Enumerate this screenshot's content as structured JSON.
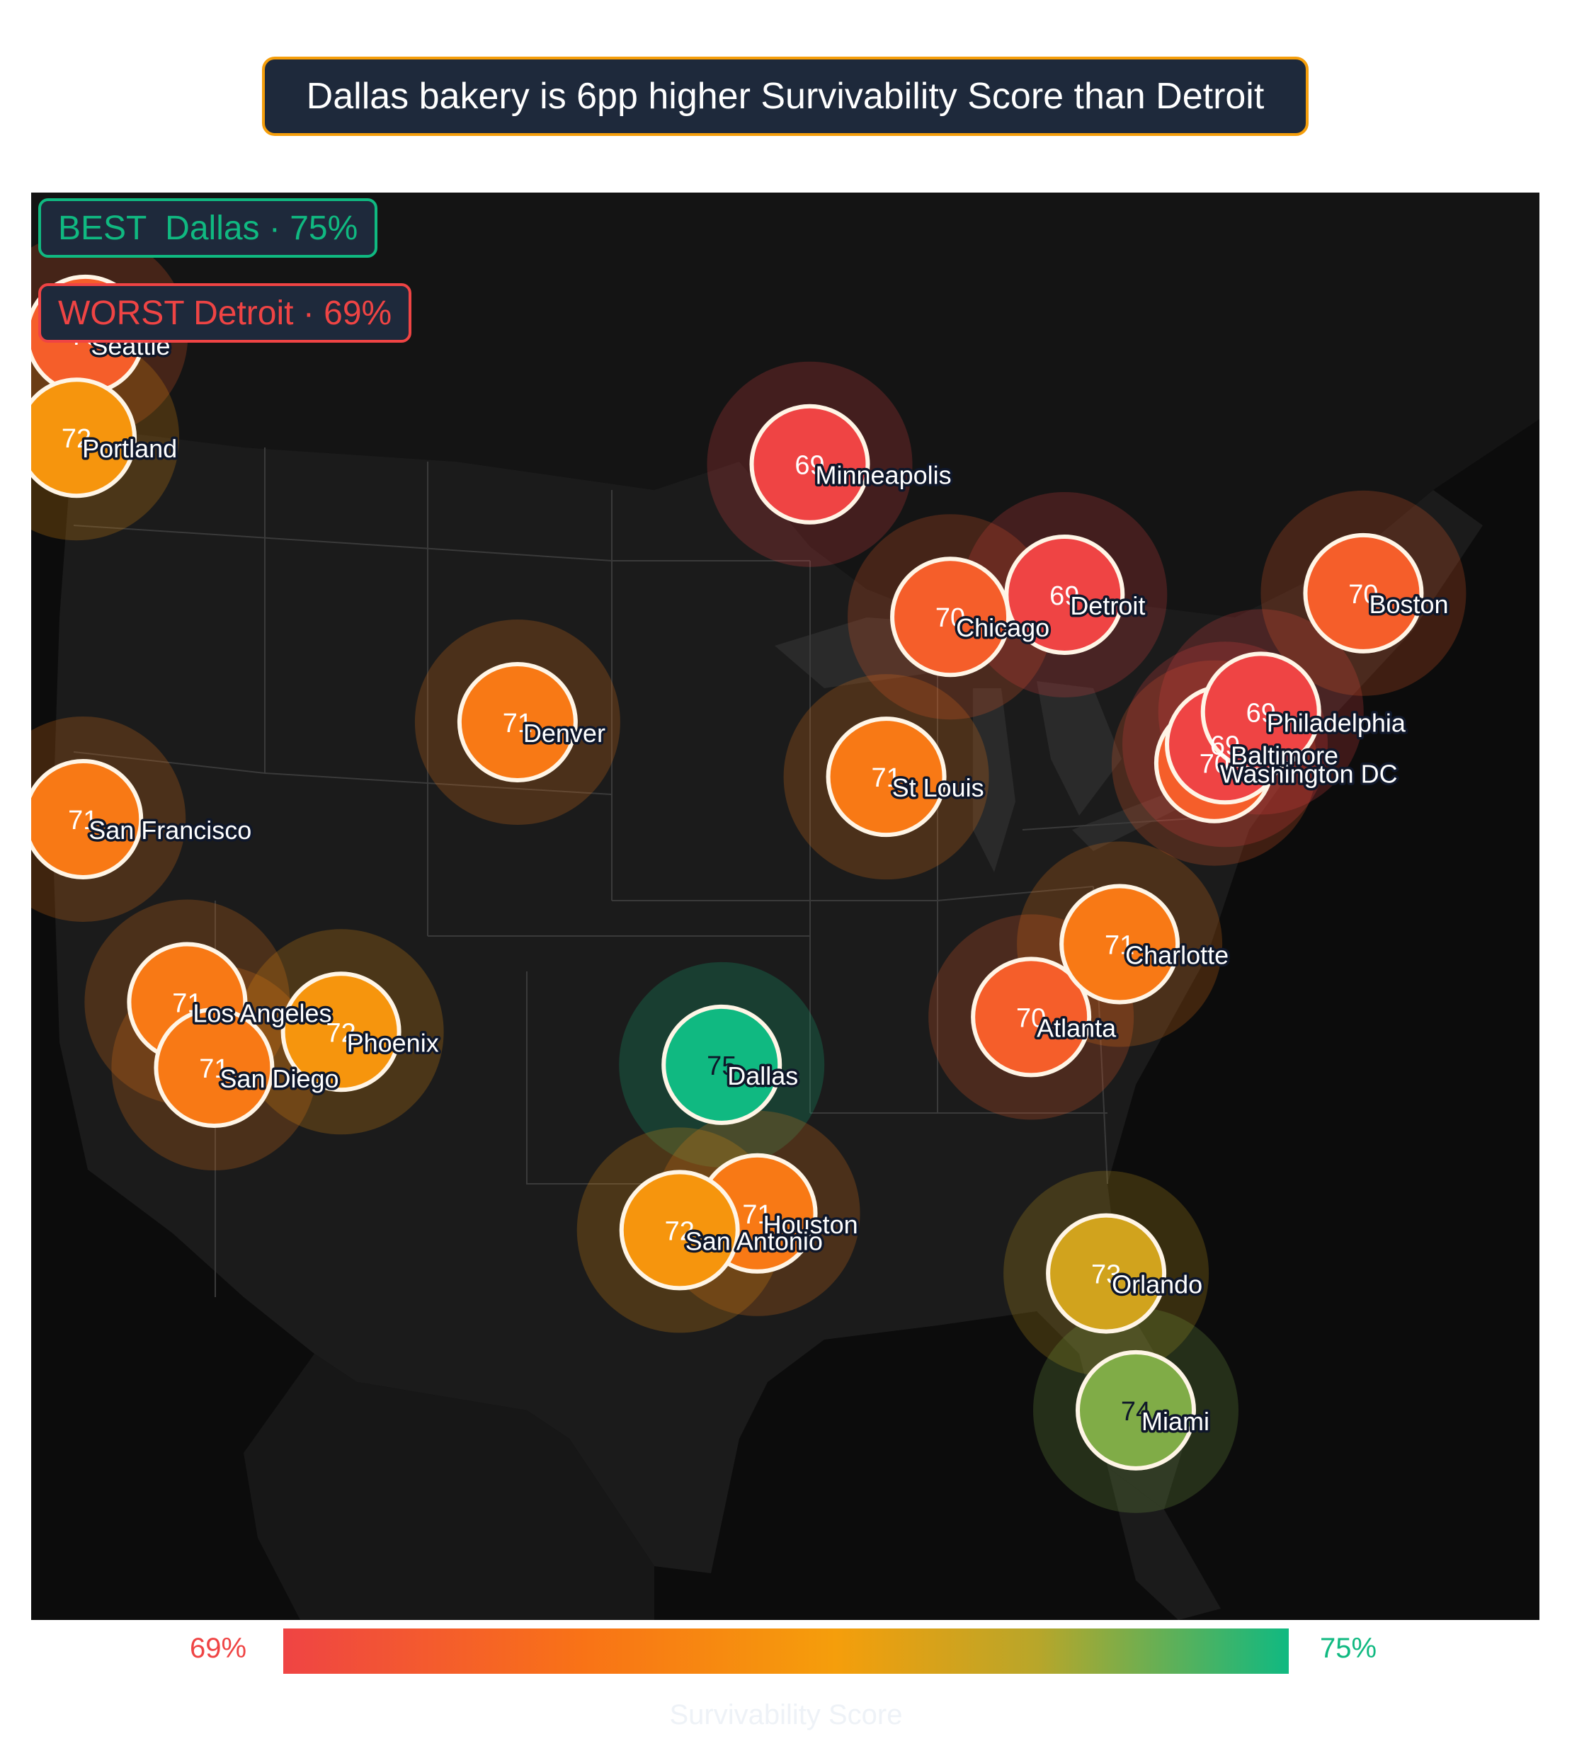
{
  "headline": "Dallas bakery is 6pp higher Survivability Score than Detroit",
  "best_badge": "BEST  Dallas · 75%",
  "worst_badge": "WORST Detroit · 69%",
  "colorbar": {
    "min_label": "69%",
    "max_label": "75%",
    "title": "Survivability Score"
  },
  "colors": {
    "low": "#ef4444",
    "mid": "#f59e0b",
    "high": "#10b981",
    "map_bg": "#0c0c0c"
  },
  "map_data": {
    "metric": "Survivability Score",
    "unit": "%",
    "range": [
      69,
      75
    ],
    "cities": [
      {
        "name": "Seattle",
        "lon": -122.33,
        "lat": 47.61,
        "value": 70
      },
      {
        "name": "Portland",
        "lon": -122.68,
        "lat": 45.52,
        "value": 72
      },
      {
        "name": "San Francisco",
        "lon": -122.42,
        "lat": 37.77,
        "value": 71
      },
      {
        "name": "Los Angeles",
        "lon": -118.24,
        "lat": 34.05,
        "value": 71
      },
      {
        "name": "San Diego",
        "lon": -117.16,
        "lat": 32.72,
        "value": 71
      },
      {
        "name": "Phoenix",
        "lon": -112.07,
        "lat": 33.45,
        "value": 72
      },
      {
        "name": "Denver",
        "lon": -104.99,
        "lat": 39.74,
        "value": 71
      },
      {
        "name": "Dallas",
        "lon": -96.8,
        "lat": 32.78,
        "value": 75
      },
      {
        "name": "Houston",
        "lon": -95.37,
        "lat": 29.76,
        "value": 71
      },
      {
        "name": "San Antonio",
        "lon": -98.49,
        "lat": 29.42,
        "value": 72
      },
      {
        "name": "Minneapolis",
        "lon": -93.27,
        "lat": 44.98,
        "value": 69
      },
      {
        "name": "St Louis",
        "lon": -90.2,
        "lat": 38.63,
        "value": 71
      },
      {
        "name": "Chicago",
        "lon": -87.63,
        "lat": 41.88,
        "value": 70
      },
      {
        "name": "Detroit",
        "lon": -83.05,
        "lat": 42.33,
        "value": 69
      },
      {
        "name": "Atlanta",
        "lon": -84.39,
        "lat": 33.75,
        "value": 70
      },
      {
        "name": "Charlotte",
        "lon": -80.84,
        "lat": 35.23,
        "value": 71
      },
      {
        "name": "Orlando",
        "lon": -81.38,
        "lat": 28.54,
        "value": 73
      },
      {
        "name": "Miami",
        "lon": -80.19,
        "lat": 25.76,
        "value": 74
      },
      {
        "name": "Washington DC",
        "lon": -77.04,
        "lat": 38.91,
        "value": 70
      },
      {
        "name": "Baltimore",
        "lon": -76.61,
        "lat": 39.29,
        "value": 69
      },
      {
        "name": "Philadelphia",
        "lon": -75.17,
        "lat": 39.95,
        "value": 69
      },
      {
        "name": "Boston",
        "lon": -71.06,
        "lat": 42.36,
        "value": 70
      }
    ]
  }
}
